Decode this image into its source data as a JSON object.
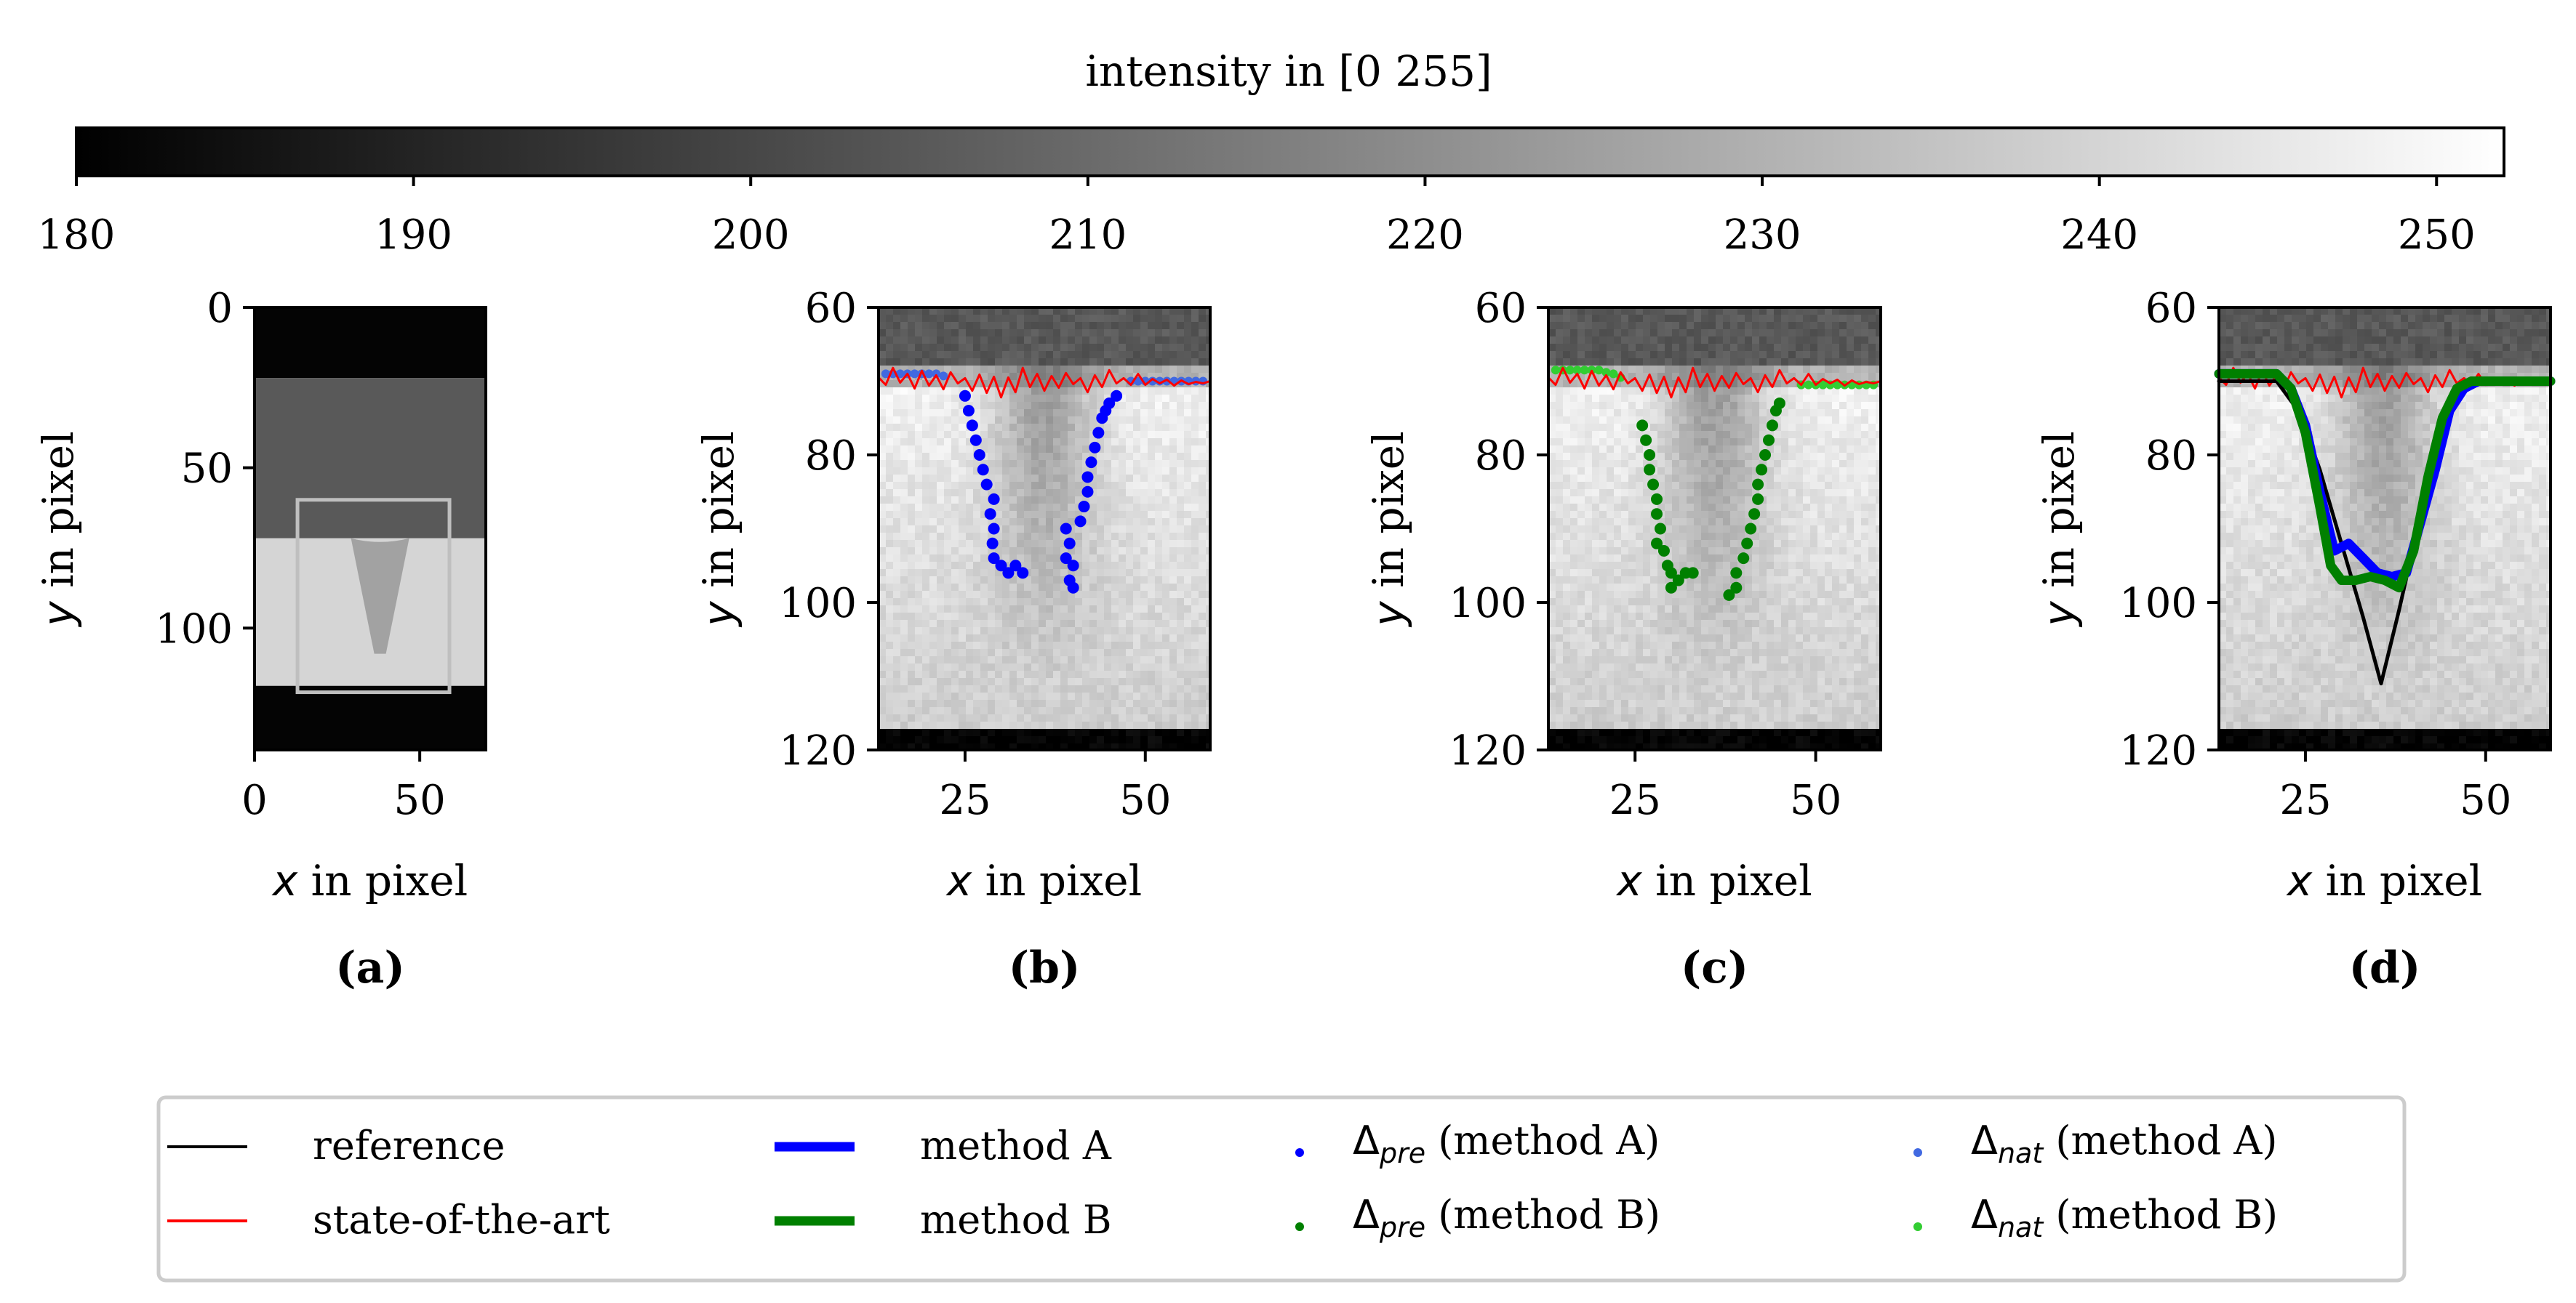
{
  "chart_data": {
    "colorbar": {
      "title": "intensity in [0 255]",
      "min": 180,
      "max": 252,
      "ticks": [
        180,
        190,
        200,
        210,
        220,
        230,
        240,
        250
      ],
      "tick_labels": [
        "180",
        "190",
        "200",
        "210",
        "220",
        "230",
        "240",
        "250"
      ]
    },
    "colors": {
      "reference": "#000000",
      "state_of_the_art": "#ff0000",
      "method_a": "#0000ff",
      "method_b": "#008000",
      "delta_nat_a": "#4169e1",
      "delta_nat_b": "#32cd32",
      "roi_box": "#bfbfbf"
    },
    "panels": [
      {
        "id": "a",
        "caption": "(a)",
        "xlabel_var": "x",
        "xlabel_rest": " in pixel",
        "ylabel_var": "y",
        "ylabel_rest": " in pixel",
        "xlim": [
          0,
          70
        ],
        "ylim": [
          0,
          138
        ],
        "xticks": [
          0,
          50
        ],
        "xtick_labels": [
          "0",
          "50"
        ],
        "yticks": [
          0,
          50,
          100
        ],
        "ytick_labels": [
          "0",
          "50",
          "100"
        ],
        "image_bands": [
          {
            "y0": 0,
            "y1": 22,
            "value": 181
          },
          {
            "y0": 22,
            "y1": 72,
            "value": 205
          },
          {
            "y0": 72,
            "y1": 118,
            "value": 240
          },
          {
            "y0": 118,
            "y1": 138,
            "value": 181
          }
        ],
        "roi": {
          "x0": 13,
          "x1": 59,
          "y0": 60,
          "y1": 120
        }
      },
      {
        "id": "b",
        "caption": "(b)",
        "xlabel_var": "x",
        "xlabel_rest": " in pixel",
        "ylabel_var": "y",
        "ylabel_rest": " in pixel",
        "xlim": [
          13,
          59
        ],
        "ylim": [
          60,
          120
        ],
        "xticks": [
          25,
          50
        ],
        "xtick_labels": [
          "25",
          "50"
        ],
        "yticks": [
          60,
          80,
          100,
          120
        ],
        "ytick_labels": [
          "60",
          "80",
          "100",
          "120"
        ],
        "pre_points_A": [
          [
            25,
            72
          ],
          [
            25.5,
            74
          ],
          [
            26,
            76
          ],
          [
            26.5,
            78
          ],
          [
            27,
            80
          ],
          [
            27.5,
            82
          ],
          [
            28,
            84
          ],
          [
            29,
            86
          ],
          [
            28.5,
            88
          ],
          [
            29,
            90
          ],
          [
            28.8,
            92
          ],
          [
            29,
            94
          ],
          [
            30,
            95
          ],
          [
            31,
            96
          ],
          [
            32,
            95
          ],
          [
            33,
            96
          ],
          [
            39,
            90
          ],
          [
            39.5,
            92
          ],
          [
            39,
            94
          ],
          [
            40,
            95
          ],
          [
            39.5,
            97
          ],
          [
            40,
            98
          ],
          [
            41,
            89
          ],
          [
            41.5,
            87
          ],
          [
            42,
            85
          ],
          [
            42,
            83
          ],
          [
            42.5,
            81
          ],
          [
            43,
            79
          ],
          [
            43.5,
            77
          ],
          [
            44,
            75
          ],
          [
            44.5,
            74
          ],
          [
            45,
            73
          ],
          [
            46,
            72
          ]
        ],
        "nat_points_A": [
          [
            14,
            69
          ],
          [
            15,
            69
          ],
          [
            16,
            69
          ],
          [
            17,
            69
          ],
          [
            18,
            69
          ],
          [
            19,
            69
          ],
          [
            20,
            69
          ],
          [
            21,
            69
          ],
          [
            22,
            69.3
          ],
          [
            48,
            70
          ],
          [
            49,
            70
          ],
          [
            50,
            70
          ],
          [
            51,
            70
          ],
          [
            52,
            70
          ],
          [
            53,
            70
          ],
          [
            54,
            70
          ],
          [
            55,
            70
          ],
          [
            56,
            70
          ],
          [
            57,
            70
          ],
          [
            58,
            70
          ]
        ]
      },
      {
        "id": "c",
        "caption": "(c)",
        "xlabel_var": "x",
        "xlabel_rest": " in pixel",
        "ylabel_var": "y",
        "ylabel_rest": " in pixel",
        "xlim": [
          13,
          59
        ],
        "ylim": [
          60,
          120
        ],
        "xticks": [
          25,
          50
        ],
        "xtick_labels": [
          "25",
          "50"
        ],
        "yticks": [
          60,
          80,
          100,
          120
        ],
        "ytick_labels": [
          "60",
          "80",
          "100",
          "120"
        ],
        "pre_points_B": [
          [
            26,
            76
          ],
          [
            26.5,
            78
          ],
          [
            27,
            80
          ],
          [
            27,
            82
          ],
          [
            27.5,
            84
          ],
          [
            28,
            86
          ],
          [
            28,
            88
          ],
          [
            28.5,
            90
          ],
          [
            28,
            92
          ],
          [
            29,
            93
          ],
          [
            29.5,
            95
          ],
          [
            30,
            96
          ],
          [
            31,
            97
          ],
          [
            30,
            98
          ],
          [
            32,
            96
          ],
          [
            33,
            96
          ],
          [
            38,
            99
          ],
          [
            39,
            98
          ],
          [
            39,
            96
          ],
          [
            40,
            94
          ],
          [
            40.5,
            92
          ],
          [
            41,
            90
          ],
          [
            41.5,
            88
          ],
          [
            42,
            86
          ],
          [
            42,
            84
          ],
          [
            42.5,
            82
          ],
          [
            43,
            80
          ],
          [
            43.5,
            78
          ],
          [
            44,
            76
          ],
          [
            44.5,
            74
          ],
          [
            45,
            73
          ]
        ],
        "nat_points_B": [
          [
            14,
            68.5
          ],
          [
            15,
            68.5
          ],
          [
            16,
            68.5
          ],
          [
            17,
            68.5
          ],
          [
            18,
            68.5
          ],
          [
            19,
            68.5
          ],
          [
            20,
            68.5
          ],
          [
            21,
            68.8
          ],
          [
            22,
            69
          ],
          [
            23,
            69.5
          ],
          [
            48,
            70.5
          ],
          [
            49,
            70.5
          ],
          [
            50,
            70.5
          ],
          [
            51,
            70.5
          ],
          [
            52,
            70.5
          ],
          [
            53,
            70.5
          ],
          [
            54,
            70.5
          ],
          [
            55,
            70.5
          ],
          [
            56,
            70.5
          ],
          [
            57,
            70.5
          ],
          [
            58,
            70.5
          ]
        ]
      },
      {
        "id": "d",
        "caption": "(d)",
        "xlabel_var": "x",
        "xlabel_rest": " in pixel",
        "ylabel_var": "y",
        "ylabel_rest": " in pixel",
        "xlim": [
          13,
          59
        ],
        "ylim": [
          60,
          120
        ],
        "xticks": [
          25,
          50
        ],
        "xtick_labels": [
          "25",
          "50"
        ],
        "yticks": [
          60,
          80,
          100,
          120
        ],
        "ytick_labels": [
          "60",
          "80",
          "100",
          "120"
        ],
        "reference_line": [
          [
            13,
            70
          ],
          [
            21,
            70
          ],
          [
            24,
            74
          ],
          [
            27,
            82
          ],
          [
            30,
            92
          ],
          [
            33,
            102
          ],
          [
            35.5,
            111
          ],
          [
            38,
            101
          ],
          [
            41,
            88
          ],
          [
            44,
            76
          ],
          [
            46,
            71
          ],
          [
            48,
            70
          ],
          [
            59,
            70
          ]
        ],
        "method_A_line": [
          [
            13,
            69
          ],
          [
            21,
            69
          ],
          [
            23,
            71
          ],
          [
            25,
            76
          ],
          [
            27,
            85
          ],
          [
            29,
            93
          ],
          [
            31,
            92
          ],
          [
            33,
            94
          ],
          [
            35,
            96
          ],
          [
            37,
            96.5
          ],
          [
            39,
            96
          ],
          [
            41,
            89
          ],
          [
            43,
            82
          ],
          [
            45,
            74
          ],
          [
            47,
            71
          ],
          [
            49,
            70
          ],
          [
            59,
            70
          ]
        ],
        "method_B_line": [
          [
            13,
            69
          ],
          [
            21,
            69
          ],
          [
            23,
            71
          ],
          [
            25,
            77
          ],
          [
            27,
            87
          ],
          [
            28.5,
            95
          ],
          [
            30,
            97
          ],
          [
            32,
            97
          ],
          [
            34,
            96.5
          ],
          [
            36,
            97
          ],
          [
            38,
            98
          ],
          [
            40,
            93
          ],
          [
            42,
            83
          ],
          [
            44,
            75
          ],
          [
            46,
            71
          ],
          [
            48,
            70
          ],
          [
            59,
            70
          ]
        ]
      }
    ],
    "state_of_the_art_line": [
      [
        13,
        69.5
      ],
      [
        14,
        70.5
      ],
      [
        15,
        68.2
      ],
      [
        16,
        70.2
      ],
      [
        17,
        69.0
      ],
      [
        18,
        71.0
      ],
      [
        19,
        68.6
      ],
      [
        20,
        70.6
      ],
      [
        21,
        69.2
      ],
      [
        22,
        71.1
      ],
      [
        23,
        68.8
      ],
      [
        24,
        70.3
      ],
      [
        25,
        69.6
      ],
      [
        26,
        71.3
      ],
      [
        27,
        69.1
      ],
      [
        28,
        71.6
      ],
      [
        29,
        69.4
      ],
      [
        30,
        72.2
      ],
      [
        31,
        69.5
      ],
      [
        32,
        71.5
      ],
      [
        33,
        68.2
      ],
      [
        34,
        70.8
      ],
      [
        35,
        69.0
      ],
      [
        36,
        71.3
      ],
      [
        37,
        69.3
      ],
      [
        38,
        70.9
      ],
      [
        39,
        68.9
      ],
      [
        40,
        70.4
      ],
      [
        41,
        69.6
      ],
      [
        42,
        71.5
      ],
      [
        43,
        69.2
      ],
      [
        44,
        70.8
      ],
      [
        45,
        68.5
      ],
      [
        46,
        70.3
      ],
      [
        47,
        69.6
      ],
      [
        48,
        70.5
      ],
      [
        49,
        69.0
      ],
      [
        50,
        70.5
      ],
      [
        51,
        69.7
      ],
      [
        52,
        70.3
      ],
      [
        53,
        69.8
      ],
      [
        54,
        70.6
      ],
      [
        55,
        69.9
      ],
      [
        56,
        70.4
      ],
      [
        57,
        70.1
      ],
      [
        58,
        70.3
      ],
      [
        59,
        70.0
      ]
    ],
    "legend": [
      {
        "label": "reference",
        "kind": "line",
        "color": "#000000",
        "width": "thin"
      },
      {
        "label": "state-of-the-art",
        "kind": "line",
        "color": "#ff0000",
        "width": "thin"
      },
      {
        "label": "method A",
        "kind": "line",
        "color": "#0000ff",
        "width": "thick"
      },
      {
        "label": "method B",
        "kind": "line",
        "color": "#008000",
        "width": "thick"
      },
      {
        "label_var": "Δ",
        "label_sub": "pre",
        "label_rest": " (method A)",
        "kind": "dot",
        "color": "#0000ff"
      },
      {
        "label_var": "Δ",
        "label_sub": "pre",
        "label_rest": " (method B)",
        "kind": "dot",
        "color": "#008000"
      },
      {
        "label_var": "Δ",
        "label_sub": "nat",
        "label_rest": " (method A)",
        "kind": "dot",
        "color": "#4169e1"
      },
      {
        "label_var": "Δ",
        "label_sub": "nat",
        "label_rest": " (method B)",
        "kind": "dot",
        "color": "#32cd32"
      }
    ]
  }
}
